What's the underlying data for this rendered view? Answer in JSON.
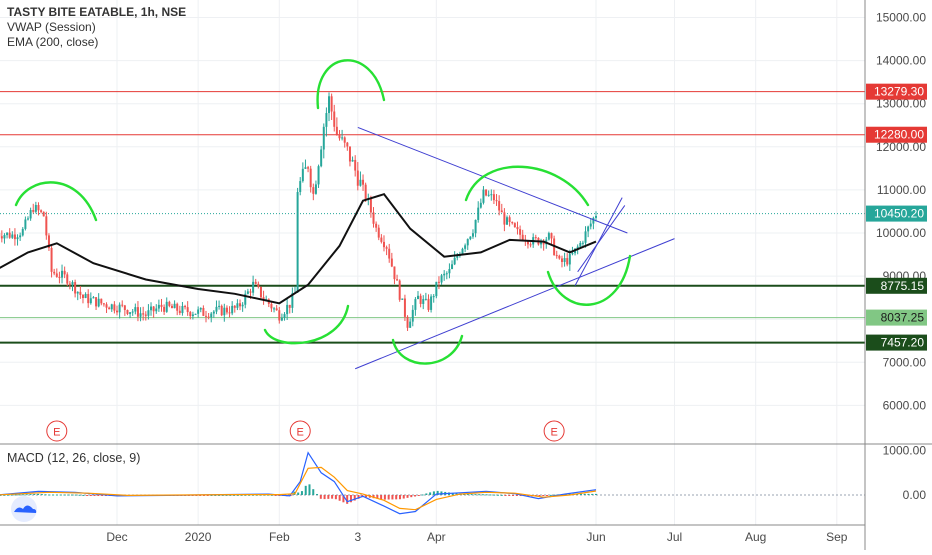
{
  "symbol": {
    "title": "TASTY BITE EATABLE, 1h, NSE",
    "indicators": [
      "VWAP (Session)",
      "EMA (200, close)"
    ]
  },
  "macd_label": "MACD (12, 26, close, 9)",
  "colors": {
    "candle_up": "#26a69a",
    "candle_down": "#ef5350",
    "red_level": "#e53935",
    "green_level": "#1b4d1b",
    "light_green_level": "#81c784",
    "current_price": "#26a69a",
    "trendline": "#3f3fd1",
    "drawing": "#27e034",
    "ema": "#111111",
    "macd_line": "#2962ff",
    "signal_line": "#ff9800",
    "earnings": "#e53935"
  },
  "chart_data": [
    {
      "type": "candlestick",
      "title": "TASTY BITE EATABLE, 1h, NSE",
      "ylim": [
        5400,
        15400
      ],
      "yticks": [
        6000,
        7000,
        8000,
        9000,
        10000,
        11000,
        12000,
        13000,
        14000,
        15000
      ],
      "ytick_labels": [
        "6000.00",
        "7000.00",
        "8000.00",
        "9000.00",
        "10000.00",
        "11000.00",
        "12000.00",
        "13000.00",
        "14000.00",
        "15000.00"
      ],
      "x_ticks": [
        "Dec",
        "2020",
        "Feb",
        "3",
        "Apr",
        "Jun",
        "Jul",
        "Aug",
        "Sep"
      ],
      "x_tick_dates": [
        "2019-12-01",
        "2020-01-01",
        "2020-02-01",
        "2020-03-02",
        "2020-04-01",
        "2020-06-01",
        "2020-07-01",
        "2020-08-01",
        "2020-09-01"
      ],
      "price_levels": [
        {
          "value": 13279.3,
          "label": "13279.30",
          "kind": "red"
        },
        {
          "value": 12280.0,
          "label": "12280.00",
          "kind": "red"
        },
        {
          "value": 10450.2,
          "label": "10450.20",
          "kind": "current"
        },
        {
          "value": 8775.15,
          "label": "8775.15",
          "kind": "green"
        },
        {
          "value": 8037.25,
          "label": "8037.25",
          "kind": "lightgreen"
        },
        {
          "value": 7457.2,
          "label": "7457.20",
          "kind": "green"
        }
      ],
      "series": [
        {
          "name": "EMA (200, close)",
          "dates": [
            "2019-10-16",
            "2019-10-28",
            "2019-11-08",
            "2019-11-22",
            "2019-12-12",
            "2020-01-01",
            "2020-01-15",
            "2020-02-01",
            "2020-02-12",
            "2020-02-24",
            "2020-03-04",
            "2020-03-12",
            "2020-03-22",
            "2020-04-04",
            "2020-04-18",
            "2020-04-29",
            "2020-05-12",
            "2020-05-22",
            "2020-06-01"
          ],
          "values": [
            9150,
            9550,
            9760,
            9300,
            8920,
            8700,
            8590,
            8370,
            8800,
            9700,
            10750,
            10900,
            10100,
            9450,
            9550,
            9840,
            9800,
            9550,
            9800
          ]
        }
      ],
      "trendlines": [
        {
          "name": "upper",
          "from": {
            "date": "2020-03-02",
            "value": 12450
          },
          "to": {
            "date": "2020-06-13",
            "value": 10000
          }
        },
        {
          "name": "lower",
          "from": {
            "date": "2020-03-01",
            "value": 6850
          },
          "to": {
            "date": "2020-07-01",
            "value": 9870
          }
        },
        {
          "name": "channel-a",
          "from": {
            "date": "2020-05-24",
            "value": 8780
          },
          "to": {
            "date": "2020-06-11",
            "value": 10820
          }
        },
        {
          "name": "channel-b",
          "from": {
            "date": "2020-05-25",
            "value": 9100
          },
          "to": {
            "date": "2020-06-12",
            "value": 10640
          }
        }
      ],
      "earnings_dates": [
        "2019-11-08",
        "2020-02-09",
        "2020-05-16"
      ],
      "earnings_label": "E"
    },
    {
      "type": "line",
      "title": "MACD (12, 26, close, 9)",
      "ylim": [
        -700,
        1150
      ],
      "yticks": [
        0,
        1000
      ],
      "ytick_labels": [
        "0.00",
        "1000.00"
      ],
      "series": [
        {
          "name": "MACD",
          "dates": [
            "2019-10-16",
            "2019-11-01",
            "2019-11-15",
            "2019-12-01",
            "2019-12-20",
            "2020-01-10",
            "2020-01-28",
            "2020-02-05",
            "2020-02-09",
            "2020-02-12",
            "2020-02-17",
            "2020-02-22",
            "2020-02-27",
            "2020-03-04",
            "2020-03-12",
            "2020-03-18",
            "2020-03-24",
            "2020-04-01",
            "2020-04-10",
            "2020-04-20",
            "2020-05-01",
            "2020-05-10",
            "2020-05-20",
            "2020-06-01"
          ],
          "values": [
            0,
            80,
            60,
            -20,
            -10,
            10,
            20,
            -20,
            300,
            950,
            500,
            300,
            -150,
            -30,
            -250,
            -420,
            -370,
            20,
            50,
            80,
            30,
            -80,
            20,
            120
          ]
        },
        {
          "name": "Signal",
          "dates": [
            "2019-10-16",
            "2019-11-05",
            "2019-11-20",
            "2019-12-05",
            "2019-12-25",
            "2020-01-15",
            "2020-02-01",
            "2020-02-07",
            "2020-02-12",
            "2020-02-17",
            "2020-02-22",
            "2020-02-27",
            "2020-03-04",
            "2020-03-12",
            "2020-03-18",
            "2020-03-24",
            "2020-04-01",
            "2020-04-10",
            "2020-04-20",
            "2020-05-01",
            "2020-05-12",
            "2020-05-22",
            "2020-06-01"
          ],
          "values": [
            0,
            60,
            40,
            -10,
            0,
            10,
            10,
            30,
            600,
            620,
            400,
            100,
            20,
            -120,
            -300,
            -330,
            -100,
            20,
            60,
            40,
            -50,
            0,
            90
          ]
        }
      ]
    }
  ]
}
